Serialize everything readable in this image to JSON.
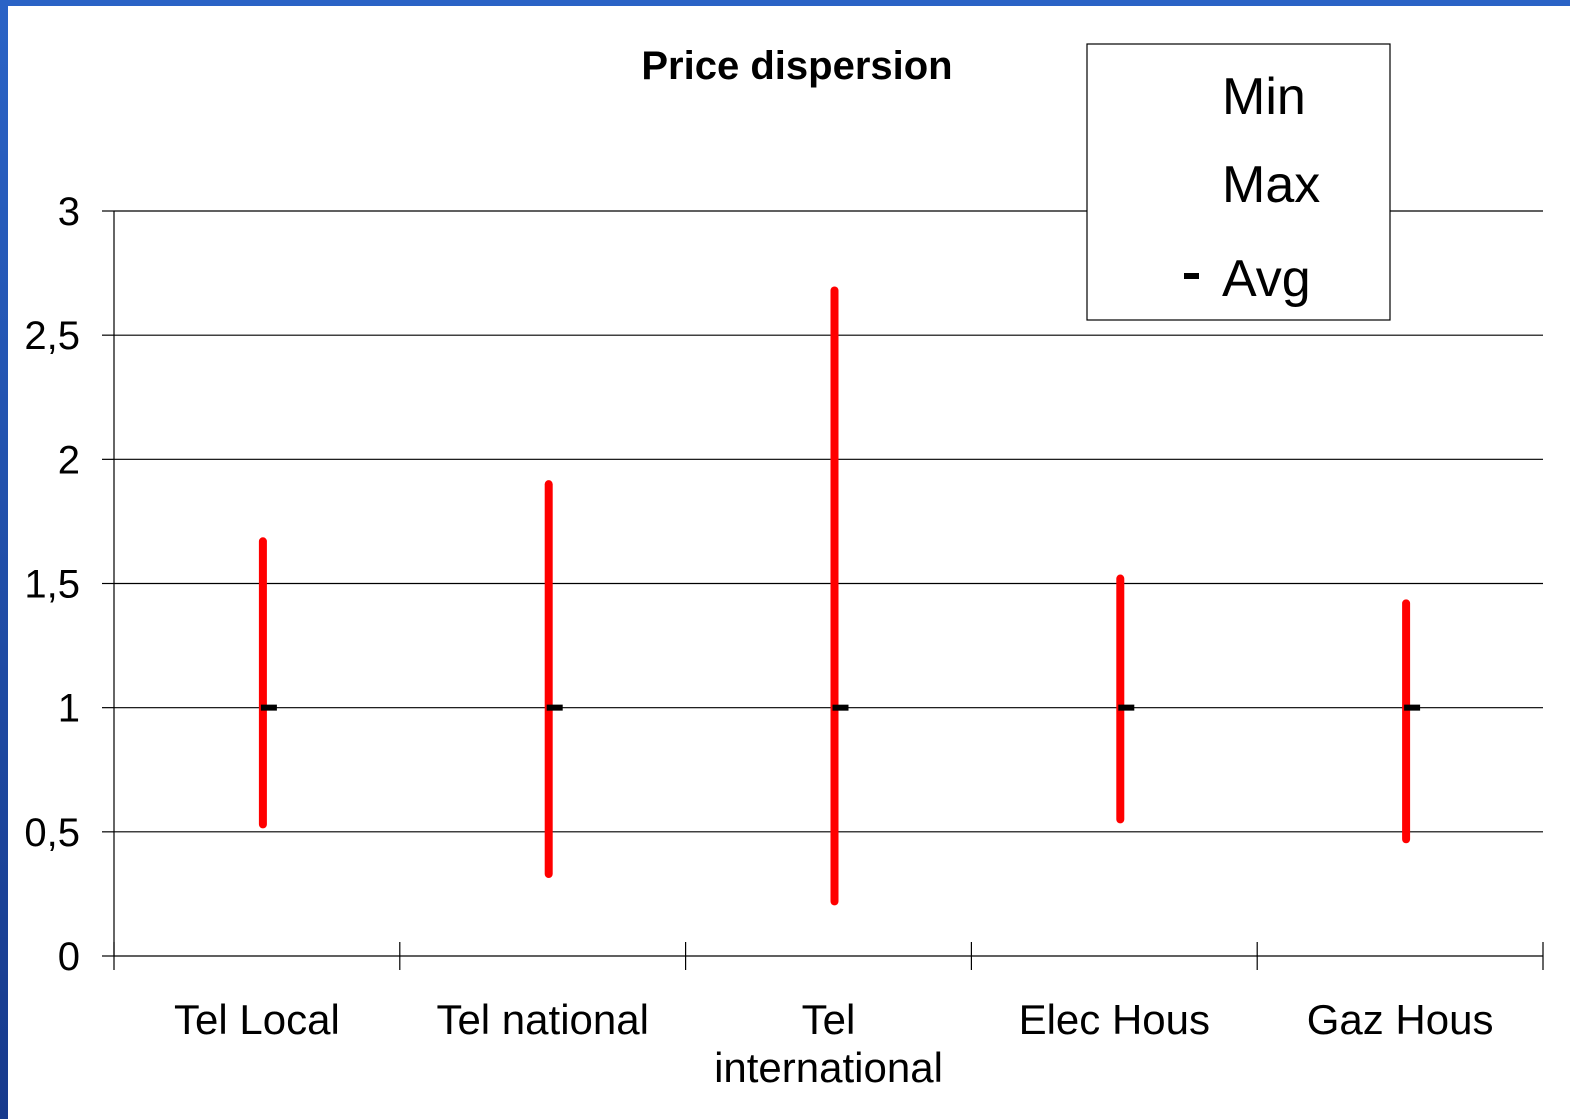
{
  "chart_data": {
    "type": "range",
    "title": "Price dispersion",
    "xlabel": "",
    "ylabel": "",
    "categories": [
      "Tel Local",
      "Tel national",
      "Tel international",
      "Elec Hous",
      "Gaz Hous"
    ],
    "category_label_lines": [
      [
        "Tel Local"
      ],
      [
        "Tel national"
      ],
      [
        "Tel",
        "international"
      ],
      [
        "Elec Hous"
      ],
      [
        "Gaz Hous"
      ]
    ],
    "series": [
      {
        "name": "Min",
        "values": [
          0.53,
          0.33,
          0.22,
          0.55,
          0.47
        ]
      },
      {
        "name": "Max",
        "values": [
          1.67,
          1.9,
          2.68,
          1.52,
          1.42
        ]
      },
      {
        "name": "Avg",
        "values": [
          1.0,
          1.0,
          1.0,
          1.0,
          1.0
        ]
      }
    ],
    "ylim": [
      0,
      3
    ],
    "yticks": [
      0,
      0.5,
      1,
      1.5,
      2,
      2.5,
      3
    ],
    "ytick_labels": [
      "0",
      "0,5",
      "1",
      "1,5",
      "2",
      "2,5",
      "3"
    ],
    "grid": true,
    "legend_position": "top-right",
    "colors": {
      "range_line": "#ff0000",
      "avg_marker": "#000000",
      "gridline": "#000000"
    }
  }
}
